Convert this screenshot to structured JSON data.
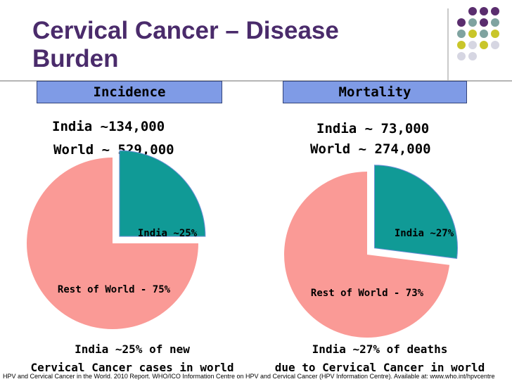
{
  "slide": {
    "title_line1": "Cervical Cancer – Disease",
    "title_line2": "Burden",
    "source": "HPV and Cervical Cancer in the World. 2010 Report. WHO/ICO Information Centre on HPV and Cervical Cancer (HPV Information Centre). Available at: www.who.int/hpvcentre"
  },
  "theme": {
    "title_color": "#4a2b6b",
    "tab_color": "#7f9be6",
    "india_color": "#109a96",
    "rest_color": "#fa9a96",
    "dot_colors": [
      "#5a2d6e",
      "#7fa3a0",
      "#c9c62a",
      "#d6d6e2"
    ]
  },
  "incidence": {
    "tab_label": "Incidence",
    "india_stat": "India ~134,000",
    "world_stat": "World ~ 529,000",
    "caption_line1": "India ~25% of new",
    "caption_line2": "Cervical Cancer cases in world"
  },
  "mortality": {
    "tab_label": "Mortality",
    "india_stat": "India ~ 73,000",
    "world_stat": "World ~ 274,000",
    "caption_line1": "India ~27% of deaths",
    "caption_line2": "due to Cervical Cancer in world"
  },
  "chart_data": [
    {
      "type": "pie",
      "title": "Incidence",
      "slices": [
        {
          "label": "India ~25%",
          "value": 25,
          "color": "#109a96",
          "exploded": true
        },
        {
          "label": "Rest of World - 75%",
          "value": 75,
          "color": "#fa9a96",
          "exploded": false
        }
      ]
    },
    {
      "type": "pie",
      "title": "Mortality",
      "slices": [
        {
          "label": "India ~27%",
          "value": 27,
          "color": "#109a96",
          "exploded": true
        },
        {
          "label": "Rest of World - 73%",
          "value": 73,
          "color": "#fa9a96",
          "exploded": false
        }
      ]
    }
  ]
}
